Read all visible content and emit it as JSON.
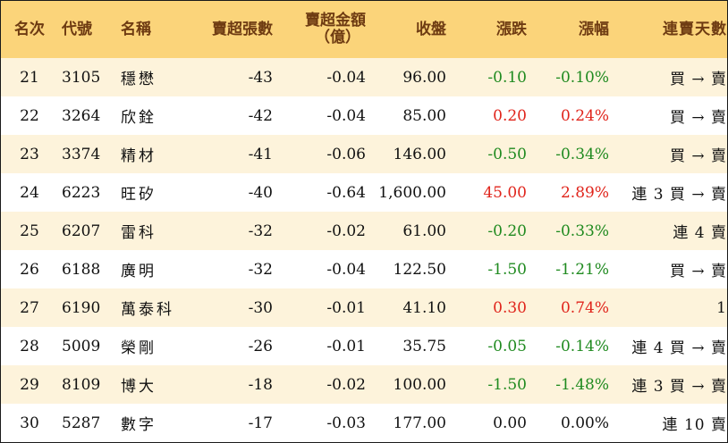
{
  "headers": {
    "rank": "名次",
    "code": "代號",
    "name": "名稱",
    "net_sell_lots": "賣超張數",
    "net_sell_amount_line1": "賣超金額",
    "net_sell_amount_line2": "（億）",
    "close": "收盤",
    "change": "漲跌",
    "change_pct": "漲幅",
    "streak": "連賣天數"
  },
  "colors": {
    "header_bg": "#fbd47a",
    "header_text": "#6e3b12",
    "row_alt_bg": "#fdf3db",
    "up": "#e0241b",
    "down": "#1f8a1f"
  },
  "rows": [
    {
      "rank": "21",
      "code": "3105",
      "name": "穩懋",
      "lots": "-43",
      "amount": "-0.04",
      "close": "96.00",
      "change": "-0.10",
      "pct": "-0.10%",
      "dir": "down",
      "streak": "買 → 賣"
    },
    {
      "rank": "22",
      "code": "3264",
      "name": "欣銓",
      "lots": "-42",
      "amount": "-0.04",
      "close": "85.00",
      "change": "0.20",
      "pct": "0.24%",
      "dir": "up",
      "streak": "買 → 賣"
    },
    {
      "rank": "23",
      "code": "3374",
      "name": "精材",
      "lots": "-41",
      "amount": "-0.06",
      "close": "146.00",
      "change": "-0.50",
      "pct": "-0.34%",
      "dir": "down",
      "streak": "買 → 賣"
    },
    {
      "rank": "24",
      "code": "6223",
      "name": "旺矽",
      "lots": "-40",
      "amount": "-0.64",
      "close": "1,600.00",
      "change": "45.00",
      "pct": "2.89%",
      "dir": "up",
      "streak": "連 3 買 → 賣"
    },
    {
      "rank": "25",
      "code": "6207",
      "name": "雷科",
      "lots": "-32",
      "amount": "-0.02",
      "close": "61.00",
      "change": "-0.20",
      "pct": "-0.33%",
      "dir": "down",
      "streak": "連 4 賣"
    },
    {
      "rank": "26",
      "code": "6188",
      "name": "廣明",
      "lots": "-32",
      "amount": "-0.04",
      "close": "122.50",
      "change": "-1.50",
      "pct": "-1.21%",
      "dir": "down",
      "streak": "買 → 賣"
    },
    {
      "rank": "27",
      "code": "6190",
      "name": "萬泰科",
      "lots": "-30",
      "amount": "-0.01",
      "close": "41.10",
      "change": "0.30",
      "pct": "0.74%",
      "dir": "up",
      "streak": "1"
    },
    {
      "rank": "28",
      "code": "5009",
      "name": "榮剛",
      "lots": "-26",
      "amount": "-0.01",
      "close": "35.75",
      "change": "-0.05",
      "pct": "-0.14%",
      "dir": "down",
      "streak": "連 4 買 → 賣"
    },
    {
      "rank": "29",
      "code": "8109",
      "name": "博大",
      "lots": "-18",
      "amount": "-0.02",
      "close": "100.00",
      "change": "-1.50",
      "pct": "-1.48%",
      "dir": "down",
      "streak": "連 3 買 → 賣"
    },
    {
      "rank": "30",
      "code": "5287",
      "name": "數字",
      "lots": "-17",
      "amount": "-0.03",
      "close": "177.00",
      "change": "0.00",
      "pct": "0.00%",
      "dir": "flat",
      "streak": "連 10 賣"
    }
  ]
}
